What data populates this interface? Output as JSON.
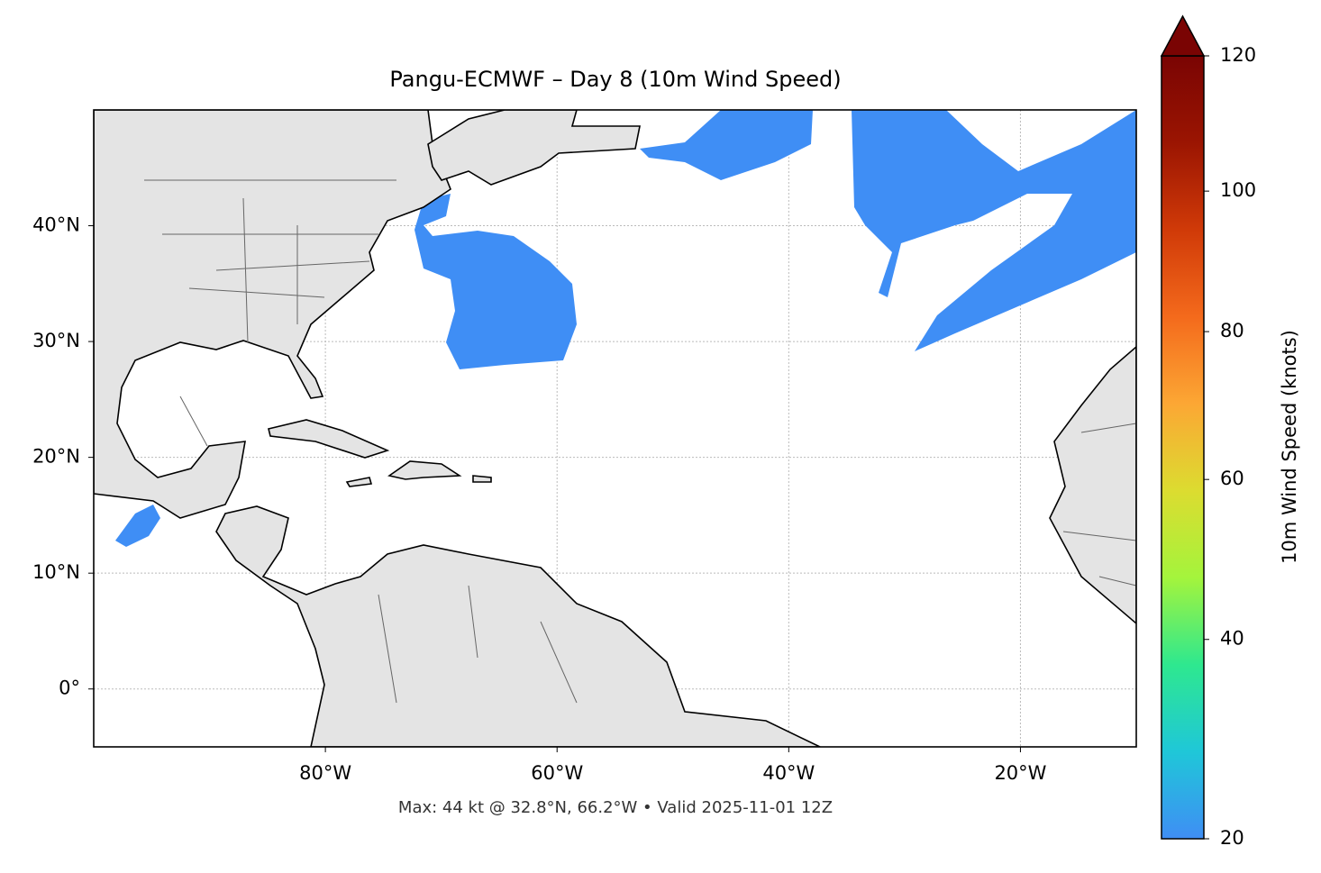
{
  "map": {
    "title": "Pangu-ECMWF – Day 8 (10m Wind Speed)",
    "xlim": [
      -100,
      -10
    ],
    "ylim": [
      -5,
      50
    ],
    "xticks": [
      {
        "value": -80,
        "label": "80°W"
      },
      {
        "value": -60,
        "label": "60°W"
      },
      {
        "value": -40,
        "label": "40°W"
      },
      {
        "value": -20,
        "label": "20°W"
      }
    ],
    "yticks": [
      {
        "value": 0,
        "label": "0°"
      },
      {
        "value": 10,
        "label": "10°N"
      },
      {
        "value": 20,
        "label": "20°N"
      },
      {
        "value": 30,
        "label": "30°N"
      },
      {
        "value": 40,
        "label": "40°N"
      }
    ],
    "grid": true,
    "footnote": "Max: 44 kt @ 32.8°N, 66.2°W • Valid 2025-11-01 12Z",
    "colorbar": {
      "label": "10m Wind Speed (knots)",
      "lim": [
        20,
        120
      ],
      "ticks": [
        20,
        40,
        60,
        80,
        100,
        120
      ],
      "gamma": 0.85,
      "colormap": [
        "#3f8ef5",
        "#1fc7d8",
        "#2ee88f",
        "#a4f43c",
        "#dcdc30",
        "#fca734",
        "#f46a1c",
        "#d03a08",
        "#9b1502",
        "#7a0403"
      ]
    }
  }
}
